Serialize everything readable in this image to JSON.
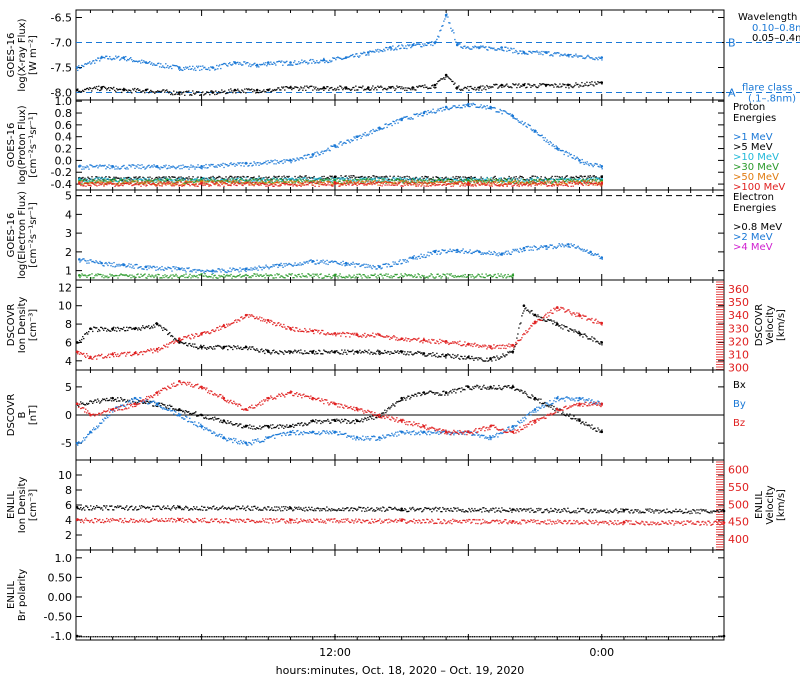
{
  "colors": {
    "black": "#000000",
    "blue": "#1a78d6",
    "cyan": "#1fb8d8",
    "green": "#2a9a2a",
    "orange": "#e07a10",
    "red": "#e02020",
    "magenta": "#d020d0"
  },
  "chart_data": {
    "type": "scatter",
    "x_axis": {
      "tick_labels": [
        "12:00",
        "0:00"
      ],
      "tick_hours": [
        12,
        24
      ],
      "range_hours": [
        0.35,
        29.5
      ],
      "xlabel": "hours:minutes, Oct. 18, 2020 – Oct. 19, 2020"
    },
    "panels": [
      {
        "id": "xray",
        "ylabel_lines": [
          "GOES-16",
          "log(X-ray Flux)",
          "[W m⁻²]"
        ],
        "ylim": [
          -8.15,
          -6.35
        ],
        "yticks": [
          -6.5,
          -7.0,
          -7.5,
          -8.0
        ],
        "ytick_labels": [
          "-6.5",
          "-7.0",
          "-7.5",
          "-8.0"
        ],
        "legend_title": "Wavelength",
        "legend": [
          {
            "label": "0.10–0.8nm",
            "color": "#1a78d6"
          },
          {
            "label": "0.05–0.4nm",
            "color": "#000000"
          }
        ],
        "reference_lines": [
          {
            "label": "B",
            "value": -7.0
          },
          {
            "label": "A",
            "value": -8.0
          }
        ],
        "flare_label_lines": [
          "flare class",
          "(.1–.8nm)"
        ],
        "series": [
          {
            "name": "0.10–0.8nm",
            "color": "#1a78d6",
            "x": [
              0.4,
              1.5,
              2.5,
              3.5,
              5.0,
              6.5,
              7.5,
              8.5,
              9.0,
              10.0,
              11.5,
              12.5,
              13.5,
              14.5,
              15.5,
              16.5,
              17.0,
              17.5,
              18.5,
              19.5,
              20.5,
              21.5,
              22.5,
              24.0
            ],
            "y": [
              -7.5,
              -7.3,
              -7.3,
              -7.4,
              -7.5,
              -7.5,
              -7.4,
              -7.45,
              -7.4,
              -7.4,
              -7.35,
              -7.3,
              -7.2,
              -7.1,
              -7.05,
              -7.0,
              -6.45,
              -7.05,
              -7.1,
              -7.1,
              -7.2,
              -7.2,
              -7.25,
              -7.3
            ]
          },
          {
            "name": "0.05–0.4nm",
            "color": "#000000",
            "x": [
              0.4,
              1.5,
              2.5,
              3.5,
              5.0,
              6.5,
              7.5,
              8.5,
              9.0,
              10.0,
              11.5,
              12.5,
              13.5,
              14.5,
              15.5,
              16.5,
              17.0,
              17.5,
              18.5,
              19.5,
              20.5,
              21.5,
              22.5,
              24.0
            ],
            "y": [
              -7.95,
              -7.9,
              -7.95,
              -7.95,
              -8.0,
              -8.0,
              -7.95,
              -7.95,
              -7.95,
              -7.9,
              -7.9,
              -7.9,
              -7.9,
              -7.9,
              -7.9,
              -7.85,
              -7.65,
              -7.9,
              -7.9,
              -7.85,
              -7.85,
              -7.85,
              -7.85,
              -7.8
            ]
          }
        ]
      },
      {
        "id": "protons",
        "ylabel_lines": [
          "GOES-16",
          "log(Proton Flux)",
          "[cm⁻²s⁻¹sr⁻¹]"
        ],
        "ylim": [
          -0.5,
          1.02
        ],
        "yticks": [
          1.0,
          0.8,
          0.6,
          0.4,
          0.2,
          0.0,
          -0.2,
          -0.4
        ],
        "ytick_labels": [
          "1.0",
          "0.8",
          "0.6",
          "0.4",
          "0.2",
          "0.0",
          "-0.2",
          "-0.4"
        ],
        "legend_title_lines": [
          "Proton",
          "Energies"
        ],
        "legend": [
          {
            "label": ">1 MeV",
            "color": "#1a78d6"
          },
          {
            "label": ">5 MeV",
            "color": "#000000"
          },
          {
            "label": ">10 MeV",
            "color": "#1fb8d8"
          },
          {
            "label": ">30 MeV",
            "color": "#2a9a2a"
          },
          {
            "label": ">50 MeV",
            "color": "#e07a10"
          },
          {
            "label": ">100 MeV",
            "color": "#e02020"
          }
        ],
        "series": [
          {
            "name": ">1 MeV",
            "color": "#1a78d6",
            "x": [
              0.5,
              2,
              4,
              6,
              8,
              10,
              11,
              12,
              13,
              14,
              15,
              16,
              17,
              18,
              19,
              20,
              21,
              22,
              23,
              24
            ],
            "y": [
              -0.1,
              -0.1,
              -0.1,
              -0.1,
              -0.05,
              0.0,
              0.1,
              0.25,
              0.4,
              0.55,
              0.7,
              0.8,
              0.9,
              0.95,
              0.9,
              0.75,
              0.5,
              0.2,
              0.0,
              -0.1
            ]
          },
          {
            "name": ">5 MeV",
            "color": "#000000",
            "x": [
              0.5,
              6,
              12,
              18,
              24
            ],
            "y": [
              -0.3,
              -0.3,
              -0.28,
              -0.3,
              -0.28
            ]
          },
          {
            "name": ">10 MeV",
            "color": "#1fb8d8",
            "x": [
              0.5,
              6,
              12,
              18,
              24
            ],
            "y": [
              -0.32,
              -0.32,
              -0.32,
              -0.32,
              -0.32
            ]
          },
          {
            "name": ">30 MeV",
            "color": "#2a9a2a",
            "x": [
              0.5,
              6,
              12,
              18,
              24
            ],
            "y": [
              -0.35,
              -0.34,
              -0.34,
              -0.34,
              -0.34
            ]
          },
          {
            "name": ">50 MeV",
            "color": "#e07a10",
            "x": [
              0.5,
              6,
              12,
              18,
              24
            ],
            "y": [
              -0.37,
              -0.37,
              -0.37,
              -0.37,
              -0.37
            ]
          },
          {
            "name": ">100 MeV",
            "color": "#e02020",
            "x": [
              0.5,
              6,
              12,
              18,
              24
            ],
            "y": [
              -0.39,
              -0.39,
              -0.39,
              -0.39,
              -0.39
            ]
          }
        ]
      },
      {
        "id": "electrons",
        "ylabel_lines": [
          "GOES-16",
          "log(Electron Flux)",
          "[cm⁻²s⁻¹sr⁻¹]"
        ],
        "ylim": [
          0.5,
          5.3
        ],
        "yticks": [
          5,
          4,
          3,
          2,
          1
        ],
        "ytick_labels": [
          "5",
          "4",
          "3",
          "2",
          "1"
        ],
        "reference_lines": [
          {
            "label": "",
            "value": 5.0
          }
        ],
        "legend_title_lines": [
          "Electron",
          "Energies"
        ],
        "legend": [
          {
            "label": ">0.8 MeV",
            "color": "#000000"
          },
          {
            "label": ">2 MeV",
            "color": "#1a78d6"
          },
          {
            "label": ">4 MeV",
            "color": "#d020d0"
          }
        ],
        "series": [
          {
            "name": ">2 MeV",
            "color": "#1a78d6",
            "x": [
              0.5,
              1.5,
              2.5,
              3.5,
              5,
              6.5,
              8,
              9.5,
              11,
              12.5,
              14,
              15.5,
              16.5,
              17.5,
              18.5,
              19.5,
              20.5,
              21.5,
              22.5,
              23.5,
              24.0
            ],
            "y": [
              1.6,
              1.4,
              1.3,
              1.2,
              1.1,
              1.0,
              1.1,
              1.3,
              1.5,
              1.4,
              1.2,
              1.7,
              2.0,
              2.1,
              2.0,
              1.9,
              2.2,
              2.3,
              2.4,
              2.0,
              1.7
            ]
          },
          {
            "name": ">0.8 MeV",
            "color": "#2a9a2a",
            "x": [
              0.5,
              12,
              20
            ],
            "y": [
              0.75,
              0.75,
              0.75
            ]
          }
        ]
      },
      {
        "id": "dscovr-density",
        "ylabel_lines": [
          "DSCOVR",
          "Ion Density",
          "[cm⁻³]"
        ],
        "ylim": [
          3,
          12.8
        ],
        "yticks": [
          12,
          10,
          8,
          6,
          4
        ],
        "ytick_labels": [
          "12",
          "10",
          "8",
          "6",
          "4"
        ],
        "right_ylabel_lines": [
          "DSCOVR",
          "Velocity",
          "[km/s]"
        ],
        "right_ylim": [
          298,
          367
        ],
        "right_yticks": [
          360,
          350,
          340,
          330,
          320,
          310,
          300
        ],
        "right_ytick_labels": [
          "360",
          "350",
          "340",
          "330",
          "320",
          "310",
          "300"
        ],
        "series": [
          {
            "name": "Ion Density",
            "color": "#000000",
            "axis": "left",
            "x": [
              0.4,
              1,
              2,
              3,
              4,
              5,
              6,
              7,
              8,
              9,
              10,
              11,
              12,
              13,
              14,
              15,
              16,
              17,
              18,
              19,
              20,
              20.5,
              21,
              22,
              23,
              24
            ],
            "y": [
              6,
              7.5,
              7.5,
              7.5,
              8,
              6,
              5.5,
              5.5,
              5.5,
              5,
              5,
              5,
              5,
              5,
              5,
              5,
              4.8,
              4.6,
              4.4,
              4.2,
              5,
              10,
              9,
              8,
              7,
              6
            ]
          },
          {
            "name": "Velocity",
            "color": "#e02020",
            "axis": "right",
            "x": [
              0.4,
              1,
              2,
              3,
              4,
              5,
              6,
              7,
              8,
              9,
              10,
              11,
              12,
              13,
              14,
              15,
              16,
              17,
              18,
              19,
              20,
              21,
              22,
              23,
              24
            ],
            "y": [
              312,
              308,
              310,
              311,
              314,
              322,
              326,
              332,
              340,
              336,
              330,
              328,
              326,
              325,
              325,
              322,
              321,
              320,
              318,
              316,
              317,
              335,
              346,
              340,
              334
            ]
          }
        ]
      },
      {
        "id": "dscovr-b",
        "ylabel_lines": [
          "DSCOVR",
          "B",
          "[nT]"
        ],
        "ylim": [
          -8,
          8
        ],
        "yticks": [
          5,
          0,
          -5
        ],
        "ytick_labels": [
          "5",
          "0",
          "-5"
        ],
        "zero_line": true,
        "legend": [
          {
            "label": "Bx",
            "color": "#000000"
          },
          {
            "label": "By",
            "color": "#1a78d6"
          },
          {
            "label": "Bz",
            "color": "#e02020"
          }
        ],
        "series": [
          {
            "name": "Bx",
            "color": "#000000",
            "x": [
              0.4,
              2,
              4,
              5,
              6,
              7,
              8,
              9,
              10,
              11,
              12,
              13,
              14,
              15,
              16,
              17,
              18,
              19,
              20,
              21,
              22,
              23,
              24
            ],
            "y": [
              2,
              3,
              2,
              1,
              0,
              -1,
              -2,
              -2,
              -2,
              -1,
              -1,
              -1,
              0,
              3,
              4,
              4,
              5,
              5,
              5,
              3,
              1,
              -1,
              -3
            ]
          },
          {
            "name": "By",
            "color": "#1a78d6",
            "x": [
              0.4,
              1,
              2,
              3,
              4,
              5,
              6,
              7,
              8,
              9,
              10,
              11,
              12,
              13,
              14,
              15,
              16,
              17,
              18,
              19,
              20,
              21,
              22,
              23,
              24
            ],
            "y": [
              -5,
              -3,
              1,
              3,
              2,
              0,
              -2,
              -4,
              -5,
              -4,
              -3,
              -3,
              -3,
              -4,
              -4,
              -3,
              -3,
              -3,
              -3,
              -4,
              -2,
              1,
              3,
              3,
              2
            ]
          },
          {
            "name": "Bz",
            "color": "#e02020",
            "x": [
              0.4,
              1,
              2,
              3,
              4,
              5,
              6,
              7,
              8,
              9,
              10,
              11,
              12,
              13,
              14,
              15,
              16,
              17,
              18,
              19,
              20,
              21,
              22,
              23,
              24
            ],
            "y": [
              2,
              0,
              1,
              2,
              4,
              6,
              5,
              3,
              1,
              3,
              4,
              3,
              2,
              1,
              0,
              -1,
              -2,
              -3,
              -3,
              -2,
              -3,
              -1,
              1,
              2,
              2
            ]
          }
        ]
      },
      {
        "id": "enlil-density",
        "ylabel_lines": [
          "ENLIL",
          "Ion Density",
          "[cm⁻³]"
        ],
        "ylim": [
          0,
          12
        ],
        "yticks": [
          10,
          8,
          6,
          4,
          2
        ],
        "ytick_labels": [
          "10",
          "8",
          "6",
          "4",
          "2"
        ],
        "right_ylabel_lines": [
          "ENLIL",
          "Velocity",
          "[km/s]"
        ],
        "right_ylim": [
          368,
          628
        ],
        "right_yticks": [
          600,
          550,
          500,
          450,
          400
        ],
        "right_ytick_labels": [
          "600",
          "550",
          "500",
          "450",
          "400"
        ],
        "series": [
          {
            "name": "Ion Density",
            "color": "#000000",
            "axis": "left",
            "x": [
              0.4,
              5,
              10,
              15,
              20,
              25,
              29.5
            ],
            "y": [
              5.7,
              5.7,
              5.6,
              5.5,
              5.4,
              5.3,
              5.2
            ]
          },
          {
            "name": "Velocity",
            "color": "#e02020",
            "axis": "right",
            "x": [
              0.4,
              5,
              10,
              15,
              20,
              25,
              29.5
            ],
            "y": [
              455,
              455,
              454,
              453,
              451,
              449,
              447
            ]
          }
        ]
      },
      {
        "id": "enlil-polarity",
        "ylabel_lines": [
          "ENLIL",
          "Br polarity"
        ],
        "ylim": [
          -1.1,
          1.2
        ],
        "yticks": [
          1.0,
          0.5,
          0.0,
          -0.5,
          -1.0
        ],
        "ytick_labels": [
          "1.0",
          "0.50",
          "0.00",
          "-0.50",
          "-1.0"
        ],
        "series": [
          {
            "name": "Br polarity",
            "color": "#000000",
            "x": [
              0.4,
              29.5
            ],
            "y": [
              -1.0,
              -1.0
            ]
          }
        ]
      }
    ]
  }
}
